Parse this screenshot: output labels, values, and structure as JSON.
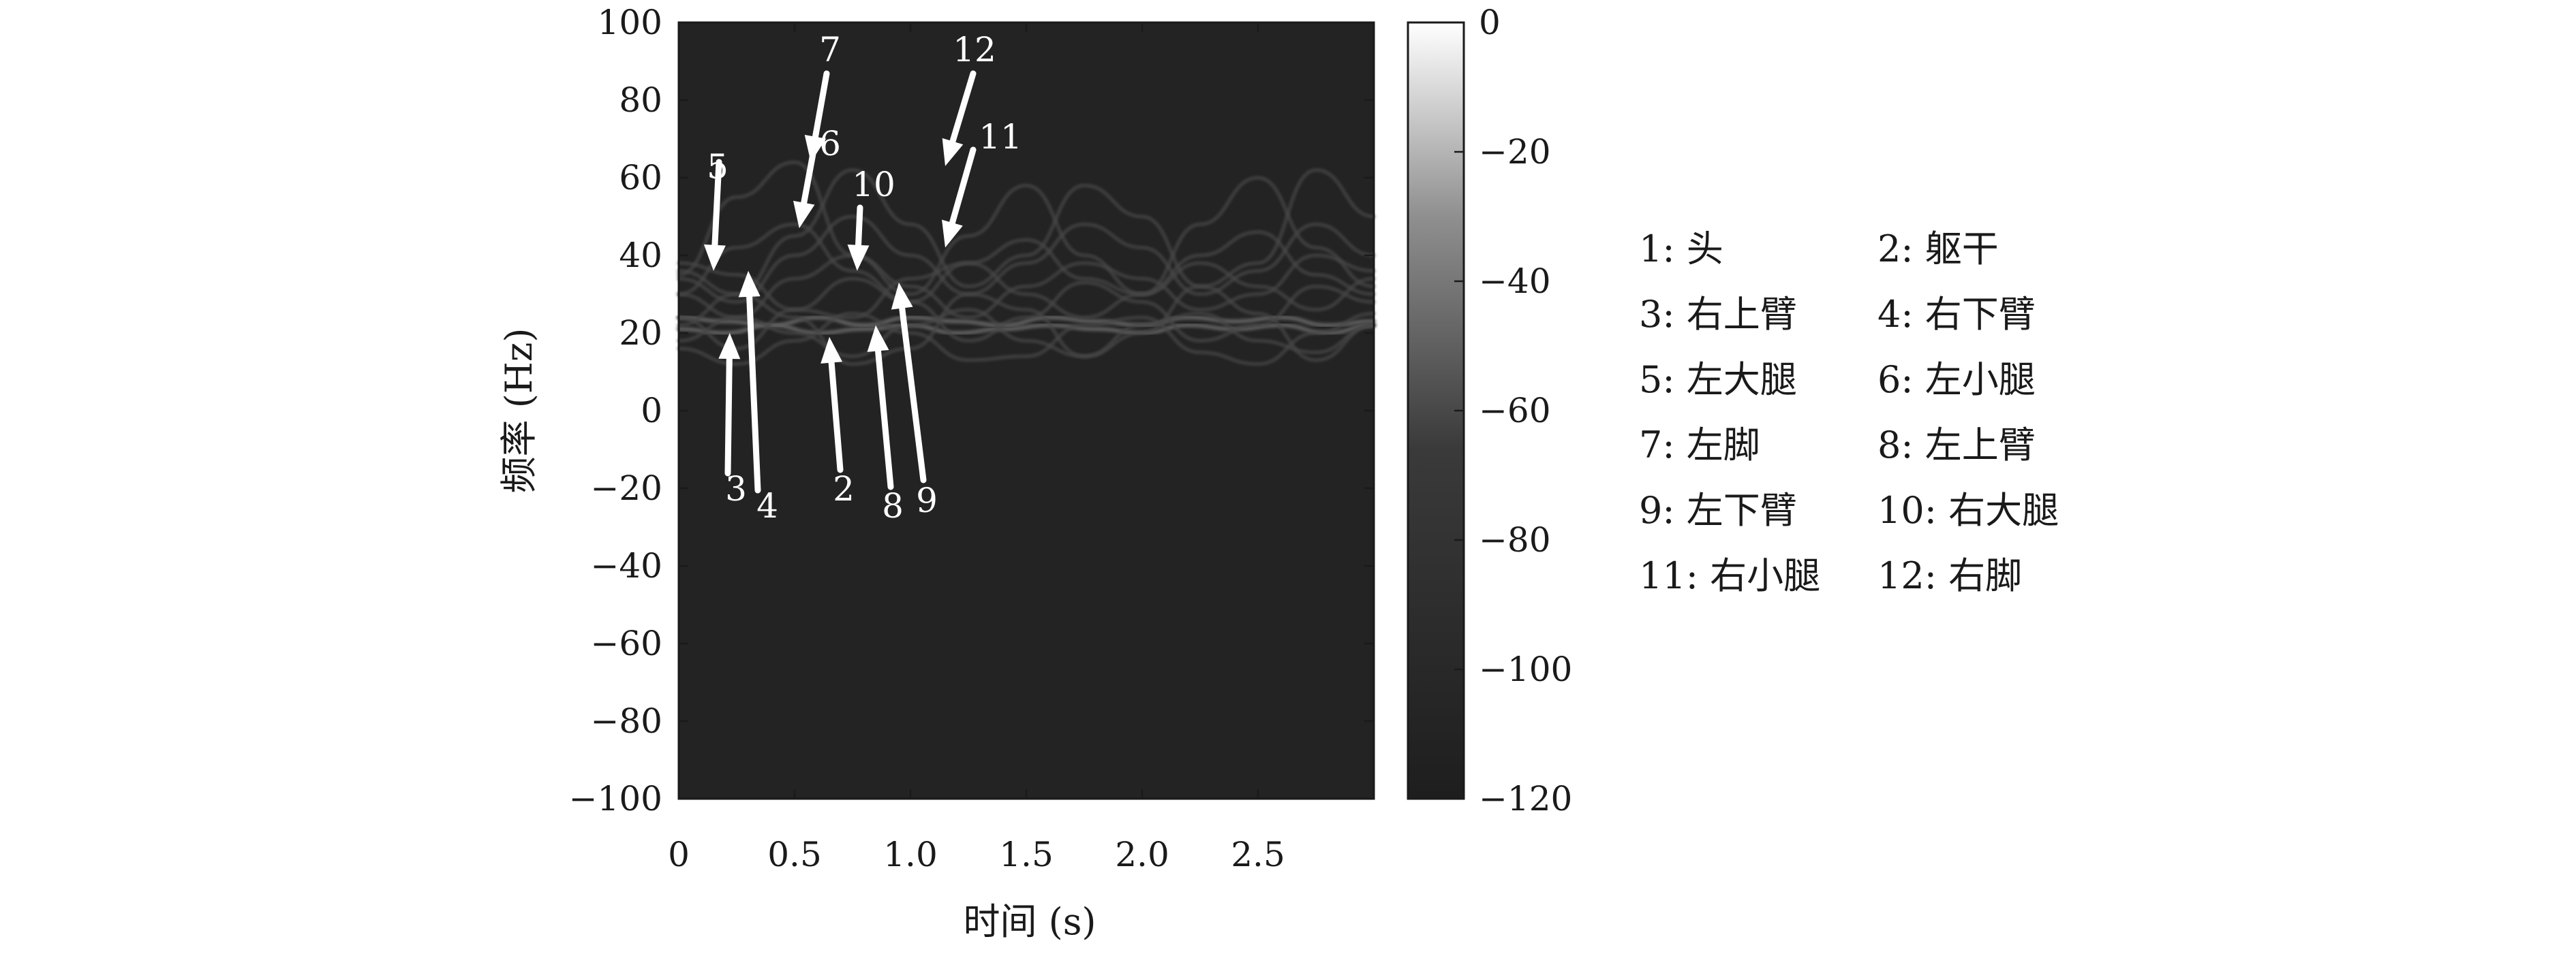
{
  "chart_data": {
    "type": "heatmap",
    "title": "",
    "xlabel": "时间 (s)",
    "ylabel": "频率 (Hz)",
    "xlim": [
      0,
      3.0
    ],
    "ylim": [
      -100,
      100
    ],
    "x_ticks": [
      0,
      0.5,
      1.0,
      1.5,
      2.0,
      2.5
    ],
    "x_tick_labels": [
      "0",
      "0.5",
      "1.0",
      "1.5",
      "2.0",
      "2.5"
    ],
    "y_ticks": [
      100,
      80,
      60,
      40,
      20,
      0,
      -20,
      -40,
      -60,
      -80,
      -100
    ],
    "y_tick_labels": [
      "100",
      "80",
      "60",
      "40",
      "20",
      "0",
      "−20",
      "−40",
      "−60",
      "−80",
      "−100"
    ],
    "colormap": "gray",
    "background_color": "#232323",
    "colorbar": {
      "range": [
        -120,
        0
      ],
      "ticks": [
        0,
        -20,
        -40,
        -60,
        -80,
        -100,
        -120
      ],
      "tick_labels": [
        "0",
        "−20",
        "−40",
        "−60",
        "−80",
        "−100",
        "−120"
      ]
    },
    "series": [
      {
        "name": "1: 头",
        "x": [
          0.0,
          0.2,
          0.4,
          0.6,
          0.8,
          1.0,
          1.2,
          1.4,
          1.6,
          1.8,
          2.0,
          2.2,
          2.4,
          2.6,
          2.8,
          3.0
        ],
        "y": [
          24,
          23,
          22,
          24,
          22,
          24,
          23,
          22,
          24,
          23,
          22,
          24,
          23,
          24,
          22,
          23
        ]
      },
      {
        "name": "2: 躯干",
        "x": [
          0.0,
          0.2,
          0.4,
          0.6,
          0.8,
          1.0,
          1.2,
          1.4,
          1.6,
          1.8,
          2.0,
          2.2,
          2.4,
          2.6,
          2.8,
          3.0
        ],
        "y": [
          21,
          20,
          22,
          20,
          21,
          22,
          20,
          21,
          22,
          21,
          20,
          22,
          21,
          22,
          20,
          22
        ]
      },
      {
        "name": "3: 右上臂",
        "x": [
          0.0,
          0.25,
          0.5,
          0.75,
          1.0,
          1.25,
          1.5,
          1.75,
          2.0,
          2.25,
          2.5,
          2.75,
          3.0
        ],
        "y": [
          16,
          12,
          18,
          25,
          20,
          13,
          14,
          22,
          24,
          15,
          12,
          20,
          25
        ]
      },
      {
        "name": "4: 右下臂",
        "x": [
          0.0,
          0.25,
          0.5,
          0.75,
          1.0,
          1.25,
          1.5,
          1.75,
          2.0,
          2.25,
          2.5,
          2.75,
          3.0
        ],
        "y": [
          22,
          30,
          24,
          12,
          16,
          30,
          26,
          14,
          20,
          32,
          25,
          13,
          22
        ]
      },
      {
        "name": "5: 左大腿",
        "x": [
          0.0,
          0.25,
          0.5,
          0.75,
          1.0,
          1.25,
          1.5,
          1.75,
          2.0,
          2.25,
          2.5,
          2.75,
          3.0
        ],
        "y": [
          38,
          35,
          26,
          24,
          34,
          38,
          30,
          24,
          30,
          38,
          32,
          26,
          34
        ]
      },
      {
        "name": "6: 左小腿",
        "x": [
          0.0,
          0.25,
          0.5,
          0.75,
          1.0,
          1.25,
          1.5,
          1.75,
          2.0,
          2.25,
          2.5,
          2.75,
          3.0
        ],
        "y": [
          30,
          42,
          48,
          36,
          28,
          38,
          44,
          34,
          30,
          40,
          46,
          35,
          30
        ]
      },
      {
        "name": "7: 左脚",
        "x": [
          0.0,
          0.25,
          0.5,
          0.75,
          1.0,
          1.25,
          1.5,
          1.75,
          2.0,
          2.25,
          2.5,
          2.75,
          3.0
        ],
        "y": [
          35,
          55,
          64,
          40,
          30,
          45,
          58,
          40,
          30,
          48,
          60,
          42,
          32
        ]
      },
      {
        "name": "8: 左上臂",
        "x": [
          0.0,
          0.25,
          0.5,
          0.75,
          1.0,
          1.25,
          1.5,
          1.75,
          2.0,
          2.25,
          2.5,
          2.75,
          3.0
        ],
        "y": [
          18,
          24,
          20,
          14,
          22,
          26,
          18,
          14,
          22,
          25,
          18,
          15,
          22
        ]
      },
      {
        "name": "9: 左下臂",
        "x": [
          0.0,
          0.25,
          0.5,
          0.75,
          1.0,
          1.25,
          1.5,
          1.75,
          2.0,
          2.25,
          2.5,
          2.75,
          3.0
        ],
        "y": [
          24,
          16,
          26,
          34,
          28,
          18,
          24,
          33,
          28,
          18,
          22,
          32,
          28
        ]
      },
      {
        "name": "10: 右大腿",
        "x": [
          0.0,
          0.25,
          0.5,
          0.75,
          1.0,
          1.25,
          1.5,
          1.75,
          2.0,
          2.25,
          2.5,
          2.75,
          3.0
        ],
        "y": [
          30,
          24,
          34,
          40,
          32,
          24,
          32,
          38,
          34,
          26,
          30,
          40,
          36
        ]
      },
      {
        "name": "11: 右小腿",
        "x": [
          0.0,
          0.25,
          0.5,
          0.75,
          1.0,
          1.25,
          1.5,
          1.75,
          2.0,
          2.25,
          2.5,
          2.75,
          3.0
        ],
        "y": [
          34,
          28,
          40,
          50,
          40,
          30,
          38,
          48,
          42,
          30,
          36,
          48,
          40
        ]
      },
      {
        "name": "12: 右脚",
        "x": [
          0.0,
          0.25,
          0.5,
          0.75,
          1.0,
          1.25,
          1.5,
          1.75,
          2.0,
          2.25,
          2.5,
          2.75,
          3.0
        ],
        "y": [
          36,
          30,
          45,
          62,
          48,
          32,
          40,
          58,
          50,
          32,
          38,
          62,
          50
        ]
      }
    ],
    "annotations": [
      {
        "text": "1: 头"
      },
      {
        "text": "2: 躯干"
      },
      {
        "text": "3: 右上臂"
      },
      {
        "text": "4: 右下臂"
      },
      {
        "text": "5: 左大腿"
      },
      {
        "text": "6: 左小腿"
      },
      {
        "text": "7: 左脚"
      },
      {
        "text": "8: 左上臂"
      },
      {
        "text": "9: 左下臂"
      },
      {
        "text": "10: 右大腿"
      },
      {
        "text": "11: 右小腿"
      },
      {
        "text": "12: 右脚"
      }
    ],
    "arrows": [
      {
        "label": "5",
        "tip_x": 0.15,
        "tip_y": 36
      },
      {
        "label": "3",
        "tip_x": 0.22,
        "tip_y": 20
      },
      {
        "label": "4",
        "tip_x": 0.3,
        "tip_y": 36
      },
      {
        "label": "7",
        "tip_x": 0.57,
        "tip_y": 64
      },
      {
        "label": "6",
        "tip_x": 0.52,
        "tip_y": 47
      },
      {
        "label": "2",
        "tip_x": 0.65,
        "tip_y": 19
      },
      {
        "label": "10",
        "tip_x": 0.77,
        "tip_y": 36
      },
      {
        "label": "8",
        "tip_x": 0.85,
        "tip_y": 22
      },
      {
        "label": "9",
        "tip_x": 0.95,
        "tip_y": 33
      },
      {
        "label": "12",
        "tip_x": 1.15,
        "tip_y": 63
      },
      {
        "label": "11",
        "tip_x": 1.15,
        "tip_y": 42
      }
    ]
  }
}
